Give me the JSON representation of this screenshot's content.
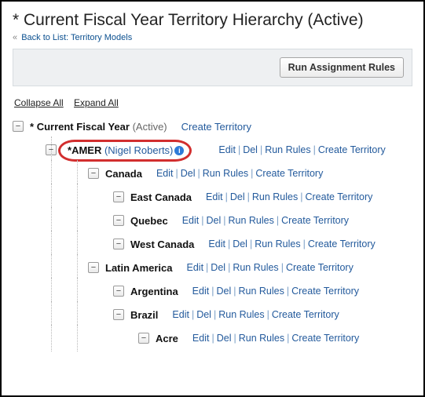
{
  "colors": {
    "link": "#235a9c",
    "back": "#0a4f8f",
    "highlight": "#d22e2e",
    "toolbar_bg": "#eef0f2"
  },
  "header": {
    "title": "* Current Fiscal Year Territory Hierarchy (Active)",
    "back_arrows": "«",
    "back_label": "Back to List: Territory Models"
  },
  "toolbar": {
    "run_label": "Run Assignment Rules"
  },
  "controls": {
    "collapse": "Collapse All",
    "expand": "Expand All"
  },
  "action_labels": {
    "edit": "Edit",
    "del": "Del",
    "run": "Run Rules",
    "create": "Create Territory"
  },
  "tree": {
    "root": {
      "prefix": "*",
      "name": "Current Fiscal Year",
      "status": "(Active)"
    },
    "amer": {
      "prefix": "*",
      "name": "AMER",
      "owner": "(Nigel Roberts)"
    },
    "nodes": [
      {
        "name": "Canada",
        "indent": 96
      },
      {
        "name": "East Canada",
        "indent": 128
      },
      {
        "name": "Quebec",
        "indent": 128
      },
      {
        "name": "West Canada",
        "indent": 128
      },
      {
        "name": "Latin America",
        "indent": 96
      },
      {
        "name": "Argentina",
        "indent": 128
      },
      {
        "name": "Brazil",
        "indent": 128
      },
      {
        "name": "Acre",
        "indent": 160
      }
    ]
  }
}
